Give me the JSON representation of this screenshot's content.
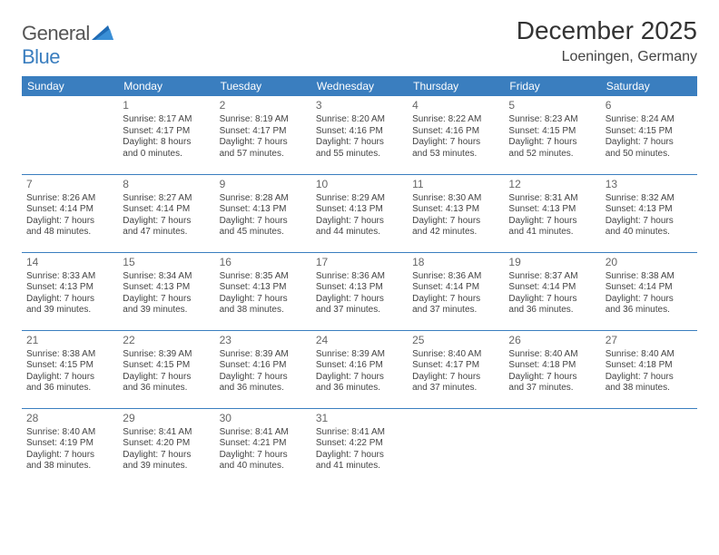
{
  "logo": {
    "general": "General",
    "blue": "Blue"
  },
  "title": "December 2025",
  "location": "Loeningen, Germany",
  "colors": {
    "accent": "#3a7ebf",
    "text": "#333333",
    "bg": "#ffffff"
  },
  "weekdays": [
    "Sunday",
    "Monday",
    "Tuesday",
    "Wednesday",
    "Thursday",
    "Friday",
    "Saturday"
  ],
  "table": {
    "type": "calendar",
    "columns": 7,
    "rows": 5,
    "cell_font_size": 10,
    "header_bg": "#3a7ebf",
    "header_text_color": "#ffffff",
    "row_divider_color": "#3a7ebf"
  },
  "weeks": [
    [
      null,
      {
        "n": "1",
        "sr": "Sunrise: 8:17 AM",
        "ss": "Sunset: 4:17 PM",
        "d1": "Daylight: 8 hours",
        "d2": "and 0 minutes."
      },
      {
        "n": "2",
        "sr": "Sunrise: 8:19 AM",
        "ss": "Sunset: 4:17 PM",
        "d1": "Daylight: 7 hours",
        "d2": "and 57 minutes."
      },
      {
        "n": "3",
        "sr": "Sunrise: 8:20 AM",
        "ss": "Sunset: 4:16 PM",
        "d1": "Daylight: 7 hours",
        "d2": "and 55 minutes."
      },
      {
        "n": "4",
        "sr": "Sunrise: 8:22 AM",
        "ss": "Sunset: 4:16 PM",
        "d1": "Daylight: 7 hours",
        "d2": "and 53 minutes."
      },
      {
        "n": "5",
        "sr": "Sunrise: 8:23 AM",
        "ss": "Sunset: 4:15 PM",
        "d1": "Daylight: 7 hours",
        "d2": "and 52 minutes."
      },
      {
        "n": "6",
        "sr": "Sunrise: 8:24 AM",
        "ss": "Sunset: 4:15 PM",
        "d1": "Daylight: 7 hours",
        "d2": "and 50 minutes."
      }
    ],
    [
      {
        "n": "7",
        "sr": "Sunrise: 8:26 AM",
        "ss": "Sunset: 4:14 PM",
        "d1": "Daylight: 7 hours",
        "d2": "and 48 minutes."
      },
      {
        "n": "8",
        "sr": "Sunrise: 8:27 AM",
        "ss": "Sunset: 4:14 PM",
        "d1": "Daylight: 7 hours",
        "d2": "and 47 minutes."
      },
      {
        "n": "9",
        "sr": "Sunrise: 8:28 AM",
        "ss": "Sunset: 4:13 PM",
        "d1": "Daylight: 7 hours",
        "d2": "and 45 minutes."
      },
      {
        "n": "10",
        "sr": "Sunrise: 8:29 AM",
        "ss": "Sunset: 4:13 PM",
        "d1": "Daylight: 7 hours",
        "d2": "and 44 minutes."
      },
      {
        "n": "11",
        "sr": "Sunrise: 8:30 AM",
        "ss": "Sunset: 4:13 PM",
        "d1": "Daylight: 7 hours",
        "d2": "and 42 minutes."
      },
      {
        "n": "12",
        "sr": "Sunrise: 8:31 AM",
        "ss": "Sunset: 4:13 PM",
        "d1": "Daylight: 7 hours",
        "d2": "and 41 minutes."
      },
      {
        "n": "13",
        "sr": "Sunrise: 8:32 AM",
        "ss": "Sunset: 4:13 PM",
        "d1": "Daylight: 7 hours",
        "d2": "and 40 minutes."
      }
    ],
    [
      {
        "n": "14",
        "sr": "Sunrise: 8:33 AM",
        "ss": "Sunset: 4:13 PM",
        "d1": "Daylight: 7 hours",
        "d2": "and 39 minutes."
      },
      {
        "n": "15",
        "sr": "Sunrise: 8:34 AM",
        "ss": "Sunset: 4:13 PM",
        "d1": "Daylight: 7 hours",
        "d2": "and 39 minutes."
      },
      {
        "n": "16",
        "sr": "Sunrise: 8:35 AM",
        "ss": "Sunset: 4:13 PM",
        "d1": "Daylight: 7 hours",
        "d2": "and 38 minutes."
      },
      {
        "n": "17",
        "sr": "Sunrise: 8:36 AM",
        "ss": "Sunset: 4:13 PM",
        "d1": "Daylight: 7 hours",
        "d2": "and 37 minutes."
      },
      {
        "n": "18",
        "sr": "Sunrise: 8:36 AM",
        "ss": "Sunset: 4:14 PM",
        "d1": "Daylight: 7 hours",
        "d2": "and 37 minutes."
      },
      {
        "n": "19",
        "sr": "Sunrise: 8:37 AM",
        "ss": "Sunset: 4:14 PM",
        "d1": "Daylight: 7 hours",
        "d2": "and 36 minutes."
      },
      {
        "n": "20",
        "sr": "Sunrise: 8:38 AM",
        "ss": "Sunset: 4:14 PM",
        "d1": "Daylight: 7 hours",
        "d2": "and 36 minutes."
      }
    ],
    [
      {
        "n": "21",
        "sr": "Sunrise: 8:38 AM",
        "ss": "Sunset: 4:15 PM",
        "d1": "Daylight: 7 hours",
        "d2": "and 36 minutes."
      },
      {
        "n": "22",
        "sr": "Sunrise: 8:39 AM",
        "ss": "Sunset: 4:15 PM",
        "d1": "Daylight: 7 hours",
        "d2": "and 36 minutes."
      },
      {
        "n": "23",
        "sr": "Sunrise: 8:39 AM",
        "ss": "Sunset: 4:16 PM",
        "d1": "Daylight: 7 hours",
        "d2": "and 36 minutes."
      },
      {
        "n": "24",
        "sr": "Sunrise: 8:39 AM",
        "ss": "Sunset: 4:16 PM",
        "d1": "Daylight: 7 hours",
        "d2": "and 36 minutes."
      },
      {
        "n": "25",
        "sr": "Sunrise: 8:40 AM",
        "ss": "Sunset: 4:17 PM",
        "d1": "Daylight: 7 hours",
        "d2": "and 37 minutes."
      },
      {
        "n": "26",
        "sr": "Sunrise: 8:40 AM",
        "ss": "Sunset: 4:18 PM",
        "d1": "Daylight: 7 hours",
        "d2": "and 37 minutes."
      },
      {
        "n": "27",
        "sr": "Sunrise: 8:40 AM",
        "ss": "Sunset: 4:18 PM",
        "d1": "Daylight: 7 hours",
        "d2": "and 38 minutes."
      }
    ],
    [
      {
        "n": "28",
        "sr": "Sunrise: 8:40 AM",
        "ss": "Sunset: 4:19 PM",
        "d1": "Daylight: 7 hours",
        "d2": "and 38 minutes."
      },
      {
        "n": "29",
        "sr": "Sunrise: 8:41 AM",
        "ss": "Sunset: 4:20 PM",
        "d1": "Daylight: 7 hours",
        "d2": "and 39 minutes."
      },
      {
        "n": "30",
        "sr": "Sunrise: 8:41 AM",
        "ss": "Sunset: 4:21 PM",
        "d1": "Daylight: 7 hours",
        "d2": "and 40 minutes."
      },
      {
        "n": "31",
        "sr": "Sunrise: 8:41 AM",
        "ss": "Sunset: 4:22 PM",
        "d1": "Daylight: 7 hours",
        "d2": "and 41 minutes."
      },
      null,
      null,
      null
    ]
  ]
}
